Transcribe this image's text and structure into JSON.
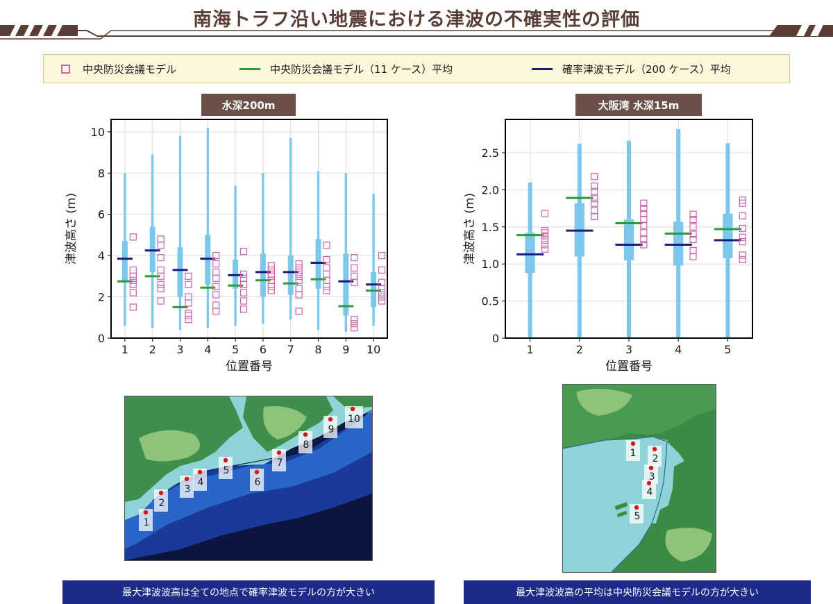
{
  "title": "南海トラフ沿い地震における津波の不確実性の評価",
  "legend": {
    "central": "中央防災会議モデル",
    "central_avg": "中央防災会議モデル（11 ケース）平均",
    "prob_avg": "確率津波モデル（200 ケース）平均"
  },
  "colors": {
    "central_marker": "#d060a8",
    "central_avg": "#2a9a3a",
    "prob_avg": "#1a1a7a",
    "prob_range": "#7cc8ec",
    "label_bg": "#6a5048",
    "caption_bg": "#1e2a88"
  },
  "chart_data": [
    {
      "type": "box",
      "label": "水深200m",
      "xlabel": "位置番号",
      "ylabel": "津波高さ (m)",
      "ylim": [
        0,
        10.6
      ],
      "yticks": [
        "0",
        "2",
        "4",
        "6",
        "8",
        "10"
      ],
      "categories": [
        "1",
        "2",
        "3",
        "4",
        "5",
        "6",
        "7",
        "8",
        "9",
        "10"
      ],
      "prob_range": [
        [
          0.6,
          8.0
        ],
        [
          0.5,
          8.9
        ],
        [
          0.4,
          9.8
        ],
        [
          0.5,
          10.2
        ],
        [
          0.6,
          7.4
        ],
        [
          0.7,
          8.0
        ],
        [
          0.9,
          9.7
        ],
        [
          0.4,
          8.1
        ],
        [
          0.3,
          8.0
        ],
        [
          0.6,
          7.0
        ]
      ],
      "prob_iqr": [
        [
          2.7,
          4.7
        ],
        [
          3.2,
          5.4
        ],
        [
          2.0,
          4.4
        ],
        [
          2.6,
          5.0
        ],
        [
          2.4,
          3.8
        ],
        [
          2.0,
          4.1
        ],
        [
          2.1,
          4.0
        ],
        [
          2.4,
          4.8
        ],
        [
          1.1,
          4.1
        ],
        [
          1.5,
          3.2
        ]
      ],
      "prob_avg": [
        3.85,
        4.25,
        3.3,
        3.85,
        3.05,
        3.2,
        3.2,
        3.65,
        2.75,
        2.6
      ],
      "central_avg": [
        2.75,
        3.0,
        1.5,
        2.45,
        2.55,
        2.8,
        2.65,
        2.85,
        1.55,
        2.3
      ],
      "central_cases": [
        [
          4.9,
          3.3,
          3.0,
          2.8,
          2.6,
          2.2,
          1.5
        ],
        [
          4.8,
          4.5,
          3.9,
          3.3,
          3.0,
          2.6,
          2.4,
          1.8
        ],
        [
          3.0,
          2.6,
          2.0,
          1.7,
          1.2,
          1.1,
          0.9
        ],
        [
          4.0,
          3.6,
          3.2,
          2.9,
          2.5,
          2.1,
          1.6,
          1.3
        ],
        [
          4.2,
          3.1,
          2.9,
          2.6,
          2.2,
          1.8,
          1.4
        ],
        [
          3.5,
          3.3,
          3.1,
          3.0,
          2.8,
          2.5,
          2.3
        ],
        [
          3.6,
          3.4,
          3.2,
          3.0,
          2.8,
          2.4,
          2.1,
          1.3
        ],
        [
          4.5,
          3.8,
          3.4,
          3.1,
          2.8,
          2.5,
          2.3
        ],
        [
          3.9,
          3.4,
          3.0,
          2.7,
          0.9,
          0.7,
          0.5
        ],
        [
          4.0,
          3.3,
          2.7,
          2.4,
          2.2,
          2.0,
          1.8
        ]
      ],
      "caption": "最大津波波高は全ての地点で確率津波モデルの方が大きい"
    },
    {
      "type": "box",
      "label": "大阪湾 水深15m",
      "xlabel": "位置番号",
      "ylabel": "津波高さ (m)",
      "ylim": [
        0,
        2.95
      ],
      "yticks": [
        "0",
        "0.5",
        "1.0",
        "1.5",
        "2.0",
        "2.5"
      ],
      "categories": [
        "1",
        "2",
        "3",
        "4",
        "5"
      ],
      "prob_range": [
        [
          0.0,
          2.1
        ],
        [
          0.0,
          2.62
        ],
        [
          0.0,
          2.66
        ],
        [
          0.0,
          2.82
        ],
        [
          0.0,
          2.63
        ]
      ],
      "prob_iqr": [
        [
          0.88,
          1.42
        ],
        [
          1.1,
          1.82
        ],
        [
          1.05,
          1.6
        ],
        [
          0.98,
          1.57
        ],
        [
          1.08,
          1.68
        ]
      ],
      "prob_avg": [
        1.13,
        1.45,
        1.26,
        1.26,
        1.32
      ],
      "central_avg": [
        1.39,
        1.89,
        1.55,
        1.41,
        1.47
      ],
      "central_cases": [
        [
          1.68,
          1.45,
          1.42,
          1.38,
          1.32,
          1.26,
          1.2
        ],
        [
          2.18,
          2.05,
          1.98,
          1.88,
          1.82,
          1.72,
          1.64
        ],
        [
          1.82,
          1.75,
          1.68,
          1.6,
          1.52,
          1.42,
          1.33,
          1.26
        ],
        [
          1.67,
          1.6,
          1.5,
          1.4,
          1.33,
          1.18,
          1.1
        ],
        [
          1.86,
          1.82,
          1.65,
          1.48,
          1.36,
          1.3,
          1.12,
          1.06
        ]
      ],
      "caption": "最大津波波高の平均は中央防災会議モデルの方が大きい"
    }
  ],
  "maps": {
    "left_points": [
      "1",
      "2",
      "3",
      "4",
      "5",
      "6",
      "7",
      "8",
      "9",
      "10"
    ],
    "right_points": [
      "1",
      "2",
      "3",
      "4",
      "5"
    ]
  }
}
